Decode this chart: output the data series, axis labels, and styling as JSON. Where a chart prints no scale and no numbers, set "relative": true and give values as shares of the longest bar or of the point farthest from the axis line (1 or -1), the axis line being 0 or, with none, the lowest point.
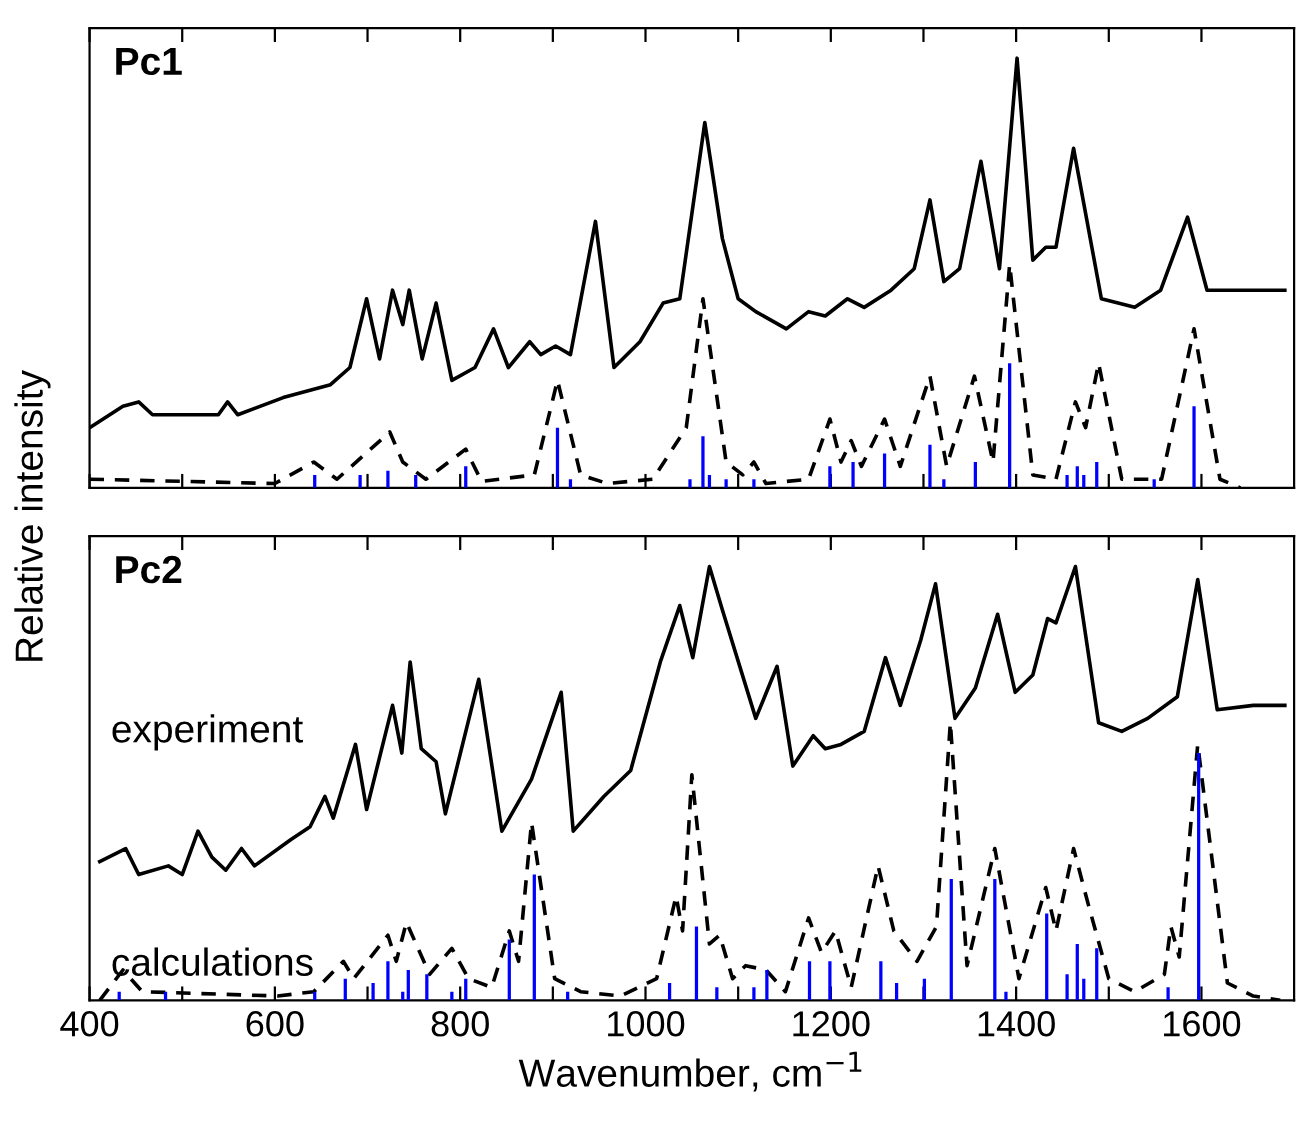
{
  "chart_data": [
    {
      "type": "line",
      "title": "Pc1",
      "relative": true,
      "xlim": [
        400,
        1700
      ],
      "xticks": [
        400,
        {
          "value": 500,
          "label": null
        },
        600,
        {
          "value": 700,
          "label": null
        },
        800,
        {
          "value": 900,
          "label": null
        },
        1000,
        {
          "value": 1100,
          "label": null
        },
        1200,
        {
          "value": 1300,
          "label": null
        },
        1400,
        {
          "value": 1500,
          "label": null
        },
        1600
      ],
      "tick_labels": false,
      "ylabel": "Relative intensity",
      "legend": false,
      "grid": false,
      "series": [
        {
          "color": "#000000",
          "line_style": "solid",
          "x": [
            400,
            436,
            453,
            468,
            539,
            549,
            560,
            609,
            660,
            681,
            699,
            713,
            727,
            738,
            745,
            759,
            774,
            791,
            816,
            836,
            852,
            875,
            887,
            903,
            919,
            946,
            966,
            994,
            1019,
            1037,
            1064,
            1083,
            1100,
            1119,
            1152,
            1176,
            1194,
            1218,
            1236,
            1265,
            1290,
            1307,
            1322,
            1339,
            1362,
            1382,
            1401,
            1418,
            1432,
            1443,
            1462,
            1492,
            1528,
            1556,
            1585,
            1606,
            1690
          ],
          "values": [
            0.14,
            0.19,
            0.2,
            0.17,
            0.17,
            0.2,
            0.17,
            0.21,
            0.24,
            0.28,
            0.44,
            0.3,
            0.46,
            0.38,
            0.46,
            0.3,
            0.43,
            0.25,
            0.28,
            0.37,
            0.28,
            0.34,
            0.31,
            0.33,
            0.31,
            0.62,
            0.28,
            0.34,
            0.43,
            0.44,
            0.85,
            0.58,
            0.44,
            0.41,
            0.37,
            0.41,
            0.4,
            0.44,
            0.42,
            0.46,
            0.51,
            0.67,
            0.48,
            0.51,
            0.76,
            0.51,
            1.0,
            0.53,
            0.56,
            0.56,
            0.79,
            0.44,
            0.42,
            0.46,
            0.63,
            0.46,
            0.46
          ]
        },
        {
          "color": "#000000",
          "line_style": "dashed",
          "x": [
            400,
            600,
            642,
            667,
            724,
            738,
            763,
            806,
            823,
            880,
            905,
            930,
            959,
            1008,
            1044,
            1062,
            1087,
            1105,
            1117,
            1130,
            1176,
            1199,
            1211,
            1222,
            1233,
            1258,
            1275,
            1307,
            1325,
            1355,
            1375,
            1393,
            1418,
            1443,
            1464,
            1475,
            1489,
            1514,
            1557,
            1592,
            1620,
            1642
          ],
          "values": [
            0.02,
            0.01,
            0.06,
            0.02,
            0.13,
            0.06,
            0.02,
            0.09,
            0.015,
            0.03,
            0.25,
            0.03,
            0.01,
            0.02,
            0.14,
            0.44,
            0.06,
            0.03,
            0.06,
            0.01,
            0.02,
            0.16,
            0.06,
            0.11,
            0.05,
            0.16,
            0.05,
            0.26,
            0.05,
            0.26,
            0.06,
            0.52,
            0.03,
            0.02,
            0.2,
            0.14,
            0.29,
            0.02,
            0.02,
            0.37,
            0.02,
            0.0
          ]
        },
        {
          "type": "bar",
          "color": "#0000ff",
          "x": [
            643,
            692,
            722,
            752,
            806,
            905,
            919,
            1048,
            1062,
            1069,
            1087,
            1117,
            1199,
            1224,
            1258,
            1307,
            1322,
            1356,
            1393,
            1455,
            1466,
            1473,
            1487,
            1549,
            1592
          ],
          "values": [
            0.03,
            0.03,
            0.04,
            0.03,
            0.05,
            0.14,
            0.02,
            0.02,
            0.12,
            0.03,
            0.02,
            0.02,
            0.05,
            0.06,
            0.08,
            0.1,
            0.02,
            0.06,
            0.29,
            0.03,
            0.05,
            0.03,
            0.06,
            0.02,
            0.19
          ]
        }
      ]
    },
    {
      "type": "line",
      "title": "Pc2",
      "relative": true,
      "xlim": [
        400,
        1700
      ],
      "xticks": [
        400,
        {
          "value": 500,
          "label": null
        },
        600,
        {
          "value": 700,
          "label": null
        },
        800,
        {
          "value": 900,
          "label": null
        },
        1000,
        {
          "value": 1100,
          "label": null
        },
        1200,
        {
          "value": 1300,
          "label": null
        },
        1400,
        {
          "value": 1500,
          "label": null
        },
        1600
      ],
      "tick_labels": "x",
      "xlabel": "Wavenumber, cm$^{−1}$",
      "legend": false,
      "grid": false,
      "series": [
        {
          "name": "experiment",
          "color": "#000000",
          "line_style": "solid",
          "x": [
            411,
            439,
            453,
            485,
            500,
            517,
            532,
            547,
            564,
            578,
            617,
            638,
            654,
            663,
            687,
            699,
            727,
            737,
            746,
            758,
            774,
            784,
            820,
            845,
            877,
            909,
            922,
            955,
            984,
            1016,
            1037,
            1051,
            1069,
            1083,
            1119,
            1142,
            1159,
            1181,
            1194,
            1211,
            1236,
            1259,
            1275,
            1297,
            1313,
            1334,
            1356,
            1380,
            1399,
            1418,
            1434,
            1443,
            1464,
            1489,
            1514,
            1542,
            1574,
            1596,
            1617,
            1656,
            1690
          ],
          "values": [
            0.32,
            0.35,
            0.29,
            0.31,
            0.29,
            0.39,
            0.33,
            0.3,
            0.35,
            0.31,
            0.37,
            0.4,
            0.47,
            0.42,
            0.59,
            0.44,
            0.68,
            0.57,
            0.78,
            0.58,
            0.55,
            0.43,
            0.74,
            0.39,
            0.51,
            0.71,
            0.39,
            0.47,
            0.53,
            0.78,
            0.91,
            0.79,
            1.0,
            0.9,
            0.65,
            0.77,
            0.54,
            0.61,
            0.58,
            0.59,
            0.62,
            0.79,
            0.68,
            0.83,
            0.96,
            0.65,
            0.72,
            0.89,
            0.71,
            0.75,
            0.88,
            0.87,
            1.0,
            0.64,
            0.62,
            0.65,
            0.7,
            0.97,
            0.67,
            0.68,
            0.68
          ]
        },
        {
          "name": "calculations",
          "color": "#000000",
          "line_style": "dashed",
          "x": [
            411,
            436,
            457,
            603,
            642,
            674,
            685,
            722,
            731,
            742,
            767,
            791,
            809,
            834,
            853,
            863,
            877,
            902,
            930,
            973,
            1012,
            1033,
            1040,
            1050,
            1069,
            1080,
            1094,
            1108,
            1130,
            1151,
            1176,
            1190,
            1205,
            1222,
            1251,
            1268,
            1293,
            1314,
            1329,
            1347,
            1377,
            1403,
            1432,
            1443,
            1462,
            1478,
            1500,
            1528,
            1560,
            1567,
            1576,
            1596,
            1628,
            1656,
            1685
          ],
          "values": [
            0.0,
            0.07,
            0.02,
            0.01,
            0.02,
            0.09,
            0.05,
            0.15,
            0.09,
            0.18,
            0.06,
            0.12,
            0.05,
            0.03,
            0.16,
            0.09,
            0.41,
            0.05,
            0.02,
            0.01,
            0.05,
            0.24,
            0.16,
            0.52,
            0.13,
            0.15,
            0.05,
            0.08,
            0.07,
            0.02,
            0.19,
            0.11,
            0.16,
            0.03,
            0.31,
            0.16,
            0.09,
            0.17,
            0.64,
            0.08,
            0.35,
            0.05,
            0.26,
            0.16,
            0.35,
            0.22,
            0.05,
            0.02,
            0.06,
            0.17,
            0.1,
            0.59,
            0.04,
            0.01,
            0.0
          ]
        },
        {
          "type": "bar",
          "color": "#0000ff",
          "x": [
            432,
            482,
            643,
            676,
            706,
            722,
            738,
            744,
            764,
            791,
            806,
            853,
            880,
            916,
            1026,
            1055,
            1077,
            1117,
            1131,
            1177,
            1199,
            1254,
            1271,
            1301,
            1330,
            1377,
            1389,
            1433,
            1455,
            1466,
            1473,
            1487,
            1564,
            1597
          ],
          "values": [
            0.02,
            0.02,
            0.02,
            0.05,
            0.04,
            0.09,
            0.02,
            0.07,
            0.06,
            0.02,
            0.05,
            0.14,
            0.29,
            0.02,
            0.04,
            0.17,
            0.03,
            0.03,
            0.07,
            0.09,
            0.09,
            0.09,
            0.04,
            0.05,
            0.28,
            0.28,
            0.02,
            0.2,
            0.06,
            0.13,
            0.05,
            0.12,
            0.03,
            0.57
          ]
        }
      ]
    }
  ]
}
